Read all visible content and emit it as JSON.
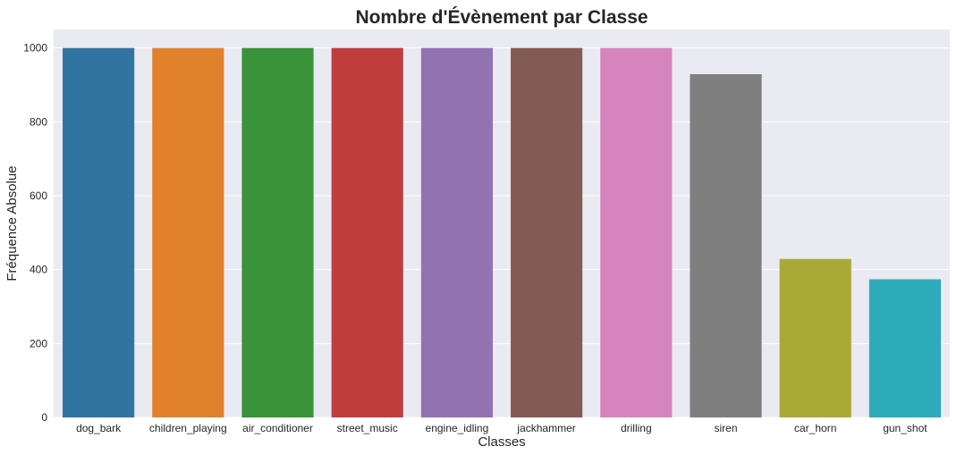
{
  "chart_data": {
    "type": "bar",
    "title": "Nombre d'Évènement par Classe",
    "xlabel": "Classes",
    "ylabel": "Fréquence Absolue",
    "categories": [
      "dog_bark",
      "children_playing",
      "air_conditioner",
      "street_music",
      "engine_idling",
      "jackhammer",
      "drilling",
      "siren",
      "car_horn",
      "gun_shot"
    ],
    "values": [
      1000,
      1000,
      1000,
      1000,
      1000,
      1000,
      1000,
      929,
      429,
      374
    ],
    "colors": [
      "#3274a1",
      "#e1812c",
      "#3a923a",
      "#c03d3e",
      "#9372b2",
      "#845b53",
      "#d684bd",
      "#7f7f7f",
      "#a9aa35",
      "#2eabb8"
    ],
    "ylim": [
      0,
      1050
    ],
    "yticks": [
      "0",
      "200",
      "400",
      "600",
      "800",
      "1000"
    ],
    "grid": true,
    "background": "#eaeaf2"
  }
}
